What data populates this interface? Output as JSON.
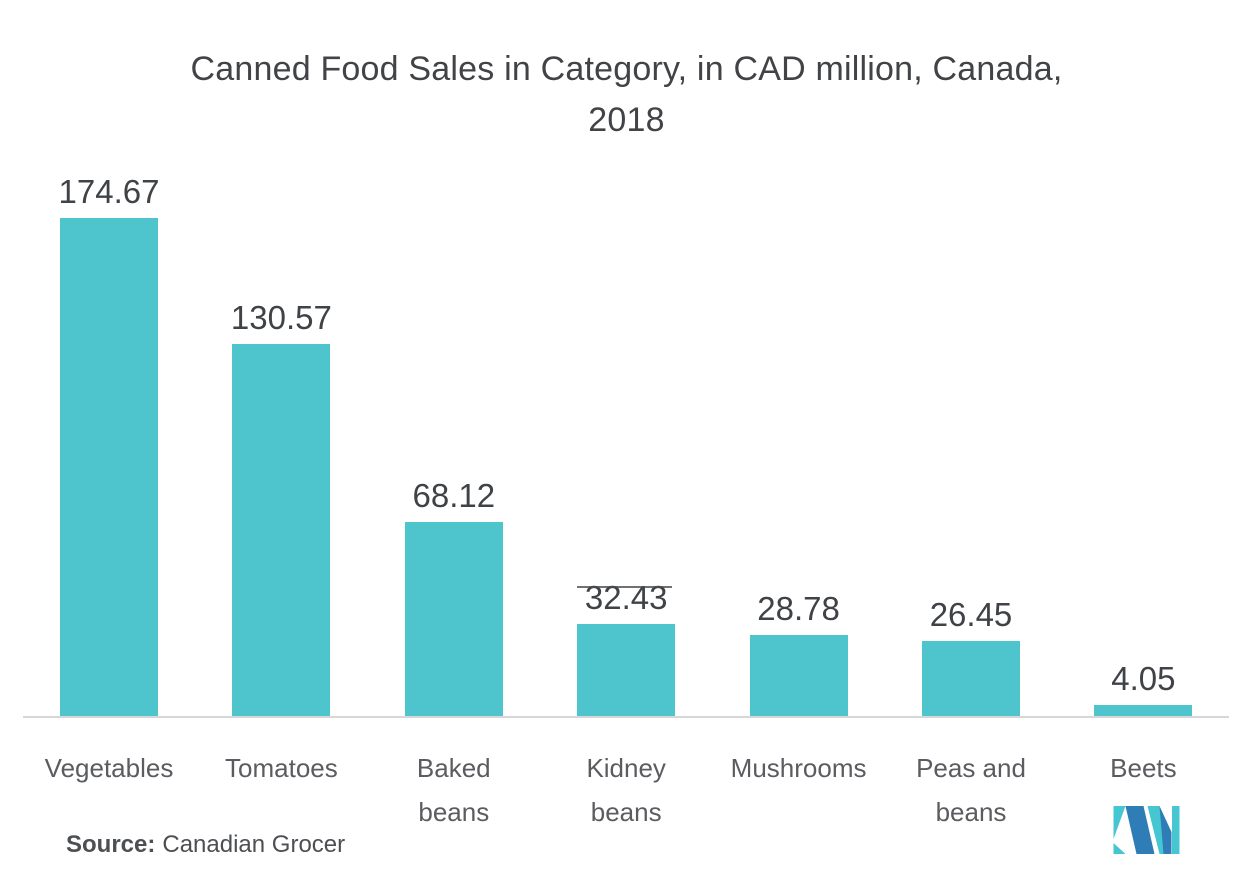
{
  "title": {
    "line1": "Canned Food Sales in Category, in CAD million, Canada,",
    "line2": "2018"
  },
  "source": {
    "label": "Source:",
    "text": "Canadian Grocer"
  },
  "logo": {
    "icon": "mordor-intelligence-m-logo"
  },
  "colors": {
    "background": "#FFFFFF",
    "bar": "#4EC4CC",
    "title_text": "#414347",
    "value_text": "#3F4246",
    "category_text": "#5A5C60",
    "source_text": "#4D4F52",
    "axis_line": "#D7D7D7",
    "logo_blue": "#2E7DB6",
    "logo_teal": "#45C6D0"
  },
  "chart_data": {
    "type": "bar",
    "title": "Canned Food Sales in Category, in CAD million, Canada, 2018",
    "unit": "CAD million",
    "categories": [
      "Vegetables",
      "Tomatoes",
      "Baked\nbeans",
      "Kidney\nbeans",
      "Mushrooms",
      "Peas and\nbeans",
      "Beets"
    ],
    "values": [
      174.67,
      130.57,
      68.12,
      32.43,
      28.78,
      26.45,
      4.05
    ],
    "value_labels": [
      "174.67",
      "130.57",
      "68.12",
      "32.43",
      "28.78",
      "26.45",
      "4.05"
    ],
    "xlabel": "",
    "ylabel": "",
    "ylim": [
      0,
      174.67
    ],
    "grid": false,
    "legend": false,
    "bar_color": "#4EC4CC",
    "value_labels_position": "above-bars"
  }
}
